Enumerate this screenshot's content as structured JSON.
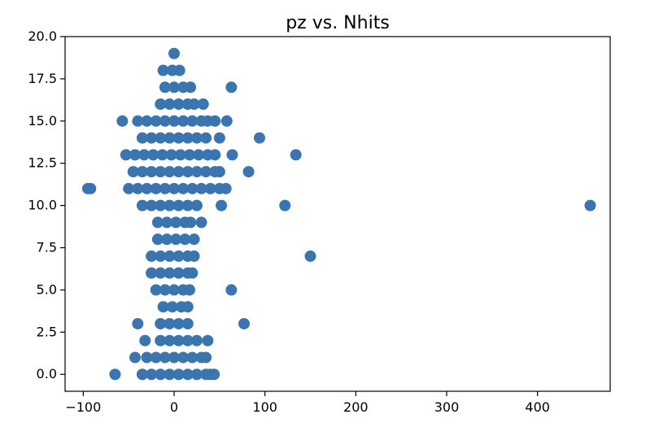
{
  "chart_data": {
    "type": "scatter",
    "title": "pz vs. Nhits",
    "xlabel": "",
    "ylabel": "",
    "xlim": [
      -120,
      480
    ],
    "ylim": [
      -1,
      20
    ],
    "x_ticks": [
      -100,
      0,
      100,
      200,
      300,
      400
    ],
    "y_ticks": [
      0.0,
      2.5,
      5.0,
      7.5,
      10.0,
      12.5,
      15.0,
      17.5,
      20.0
    ],
    "x_tick_labels": [
      "−100",
      "0",
      "100",
      "200",
      "300",
      "400"
    ],
    "y_tick_labels": [
      "0.0",
      "2.5",
      "5.0",
      "7.5",
      "10.0",
      "12.5",
      "15.0",
      "17.5",
      "20.0"
    ],
    "grid": false,
    "legend": "none",
    "colors": {
      "marker": "#3b75af"
    },
    "points": [
      {
        "x": -35,
        "y": 0
      },
      {
        "x": -25,
        "y": 0
      },
      {
        "x": -15,
        "y": 0
      },
      {
        "x": -5,
        "y": 0
      },
      {
        "x": 5,
        "y": 0
      },
      {
        "x": 15,
        "y": 0
      },
      {
        "x": 25,
        "y": 0
      },
      {
        "x": 35,
        "y": 0
      },
      {
        "x": -65,
        "y": 0
      },
      {
        "x": 40,
        "y": 0
      },
      {
        "x": 44,
        "y": 0
      },
      {
        "x": -30,
        "y": 1
      },
      {
        "x": -20,
        "y": 1
      },
      {
        "x": -10,
        "y": 1
      },
      {
        "x": 0,
        "y": 1
      },
      {
        "x": 10,
        "y": 1
      },
      {
        "x": 20,
        "y": 1
      },
      {
        "x": 30,
        "y": 1
      },
      {
        "x": -43,
        "y": 1
      },
      {
        "x": 35,
        "y": 1
      },
      {
        "x": -15,
        "y": 2
      },
      {
        "x": -5,
        "y": 2
      },
      {
        "x": 5,
        "y": 2
      },
      {
        "x": 15,
        "y": 2
      },
      {
        "x": 25,
        "y": 2
      },
      {
        "x": -32,
        "y": 2
      },
      {
        "x": 37,
        "y": 2
      },
      {
        "x": -15,
        "y": 3
      },
      {
        "x": -5,
        "y": 3
      },
      {
        "x": 5,
        "y": 3
      },
      {
        "x": 15,
        "y": 3
      },
      {
        "x": -40,
        "y": 3
      },
      {
        "x": 77,
        "y": 3
      },
      {
        "x": -12,
        "y": 4
      },
      {
        "x": -2,
        "y": 4
      },
      {
        "x": 8,
        "y": 4
      },
      {
        "x": 15,
        "y": 4
      },
      {
        "x": -20,
        "y": 5
      },
      {
        "x": -10,
        "y": 5
      },
      {
        "x": 0,
        "y": 5
      },
      {
        "x": 10,
        "y": 5
      },
      {
        "x": 17,
        "y": 5
      },
      {
        "x": 63,
        "y": 5
      },
      {
        "x": -25,
        "y": 6
      },
      {
        "x": -15,
        "y": 6
      },
      {
        "x": -5,
        "y": 6
      },
      {
        "x": 5,
        "y": 6
      },
      {
        "x": 15,
        "y": 6
      },
      {
        "x": 20,
        "y": 6
      },
      {
        "x": -25,
        "y": 7
      },
      {
        "x": -15,
        "y": 7
      },
      {
        "x": -5,
        "y": 7
      },
      {
        "x": 5,
        "y": 7
      },
      {
        "x": 15,
        "y": 7
      },
      {
        "x": 22,
        "y": 7
      },
      {
        "x": 150,
        "y": 7
      },
      {
        "x": -18,
        "y": 8
      },
      {
        "x": -8,
        "y": 8
      },
      {
        "x": 2,
        "y": 8
      },
      {
        "x": 12,
        "y": 8
      },
      {
        "x": 22,
        "y": 8
      },
      {
        "x": -18,
        "y": 9
      },
      {
        "x": -8,
        "y": 9
      },
      {
        "x": 2,
        "y": 9
      },
      {
        "x": 12,
        "y": 9
      },
      {
        "x": 18,
        "y": 9
      },
      {
        "x": 30,
        "y": 9
      },
      {
        "x": -35,
        "y": 10
      },
      {
        "x": -25,
        "y": 10
      },
      {
        "x": -15,
        "y": 10
      },
      {
        "x": -5,
        "y": 10
      },
      {
        "x": 5,
        "y": 10
      },
      {
        "x": 15,
        "y": 10
      },
      {
        "x": 25,
        "y": 10
      },
      {
        "x": 52,
        "y": 10
      },
      {
        "x": 122,
        "y": 10
      },
      {
        "x": 458,
        "y": 10
      },
      {
        "x": -95,
        "y": 11
      },
      {
        "x": -92,
        "y": 11
      },
      {
        "x": -50,
        "y": 11
      },
      {
        "x": -40,
        "y": 11
      },
      {
        "x": -30,
        "y": 11
      },
      {
        "x": -20,
        "y": 11
      },
      {
        "x": -10,
        "y": 11
      },
      {
        "x": 0,
        "y": 11
      },
      {
        "x": 10,
        "y": 11
      },
      {
        "x": 20,
        "y": 11
      },
      {
        "x": 30,
        "y": 11
      },
      {
        "x": 40,
        "y": 11
      },
      {
        "x": 50,
        "y": 11
      },
      {
        "x": 57,
        "y": 11
      },
      {
        "x": -45,
        "y": 12
      },
      {
        "x": -35,
        "y": 12
      },
      {
        "x": -25,
        "y": 12
      },
      {
        "x": -15,
        "y": 12
      },
      {
        "x": -5,
        "y": 12
      },
      {
        "x": 5,
        "y": 12
      },
      {
        "x": 15,
        "y": 12
      },
      {
        "x": 25,
        "y": 12
      },
      {
        "x": 35,
        "y": 12
      },
      {
        "x": 45,
        "y": 12
      },
      {
        "x": 50,
        "y": 12
      },
      {
        "x": 82,
        "y": 12
      },
      {
        "x": -53,
        "y": 13
      },
      {
        "x": -43,
        "y": 13
      },
      {
        "x": -33,
        "y": 13
      },
      {
        "x": -23,
        "y": 13
      },
      {
        "x": -13,
        "y": 13
      },
      {
        "x": -3,
        "y": 13
      },
      {
        "x": 7,
        "y": 13
      },
      {
        "x": 17,
        "y": 13
      },
      {
        "x": 27,
        "y": 13
      },
      {
        "x": 37,
        "y": 13
      },
      {
        "x": 45,
        "y": 13
      },
      {
        "x": 64,
        "y": 13
      },
      {
        "x": 134,
        "y": 13
      },
      {
        "x": -35,
        "y": 14
      },
      {
        "x": -25,
        "y": 14
      },
      {
        "x": -15,
        "y": 14
      },
      {
        "x": -5,
        "y": 14
      },
      {
        "x": 5,
        "y": 14
      },
      {
        "x": 15,
        "y": 14
      },
      {
        "x": 25,
        "y": 14
      },
      {
        "x": 35,
        "y": 14
      },
      {
        "x": 50,
        "y": 14
      },
      {
        "x": 94,
        "y": 14
      },
      {
        "x": -57,
        "y": 15
      },
      {
        "x": -40,
        "y": 15
      },
      {
        "x": -30,
        "y": 15
      },
      {
        "x": -20,
        "y": 15
      },
      {
        "x": -10,
        "y": 15
      },
      {
        "x": 0,
        "y": 15
      },
      {
        "x": 10,
        "y": 15
      },
      {
        "x": 20,
        "y": 15
      },
      {
        "x": 30,
        "y": 15
      },
      {
        "x": 37,
        "y": 15
      },
      {
        "x": 45,
        "y": 15
      },
      {
        "x": 58,
        "y": 15
      },
      {
        "x": -15,
        "y": 16
      },
      {
        "x": -5,
        "y": 16
      },
      {
        "x": 5,
        "y": 16
      },
      {
        "x": 15,
        "y": 16
      },
      {
        "x": 22,
        "y": 16
      },
      {
        "x": 32,
        "y": 16
      },
      {
        "x": -10,
        "y": 17
      },
      {
        "x": 0,
        "y": 17
      },
      {
        "x": 10,
        "y": 17
      },
      {
        "x": 18,
        "y": 17
      },
      {
        "x": 63,
        "y": 17
      },
      {
        "x": -12,
        "y": 18
      },
      {
        "x": -2,
        "y": 18
      },
      {
        "x": 6,
        "y": 18
      },
      {
        "x": 0,
        "y": 19
      }
    ]
  }
}
